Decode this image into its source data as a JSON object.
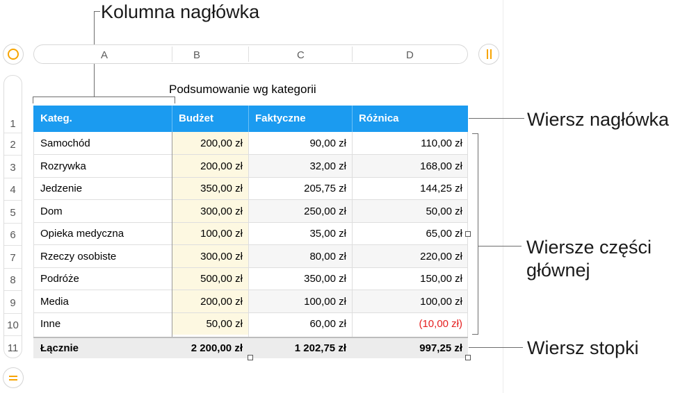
{
  "annotations": {
    "header_column": "Kolumna nagłówka",
    "header_row": "Wiersz nagłówka",
    "body_rows_line1": "Wiersze części",
    "body_rows_line2": "głównej",
    "footer_row": "Wiersz stopki"
  },
  "column_letters": [
    "A",
    "B",
    "C",
    "D"
  ],
  "row_numbers": [
    "1",
    "2",
    "3",
    "4",
    "5",
    "6",
    "7",
    "8",
    "9",
    "10",
    "11"
  ],
  "table": {
    "title": "Podsumowanie wg kategorii",
    "headers": [
      "Kateg.",
      "Budżet",
      "Faktyczne",
      "Różnica"
    ],
    "rows": [
      {
        "category": "Samochód",
        "budget": "200,00 zł",
        "actual": "90,00 zł",
        "difference": "110,00 zł"
      },
      {
        "category": "Rozrywka",
        "budget": "200,00 zł",
        "actual": "32,00 zł",
        "difference": "168,00 zł"
      },
      {
        "category": "Jedzenie",
        "budget": "350,00 zł",
        "actual": "205,75 zł",
        "difference": "144,25 zł"
      },
      {
        "category": "Dom",
        "budget": "300,00 zł",
        "actual": "250,00 zł",
        "difference": "50,00 zł"
      },
      {
        "category": "Opieka medyczna",
        "budget": "100,00 zł",
        "actual": "35,00 zł",
        "difference": "65,00 zł"
      },
      {
        "category": "Rzeczy osobiste",
        "budget": "300,00 zł",
        "actual": "80,00 zł",
        "difference": "220,00 zł"
      },
      {
        "category": "Podróże",
        "budget": "500,00 zł",
        "actual": "350,00 zł",
        "difference": "150,00 zł"
      },
      {
        "category": "Media",
        "budget": "200,00 zł",
        "actual": "100,00 zł",
        "difference": "100,00 zł"
      },
      {
        "category": "Inne",
        "budget": "50,00 zł",
        "actual": "60,00 zł",
        "difference": "(10,00 zł)"
      }
    ],
    "footer": {
      "label": "Łącznie",
      "budget": "2 200,00 zł",
      "actual": "1 202,75 zł",
      "difference": "997,25 zł"
    }
  },
  "colors": {
    "header_bg": "#1b9bf0",
    "accent": "#f7a400",
    "negative": "#e52020",
    "budget_column_bg": "#fdf8e1"
  },
  "icons": {
    "table_select": "circle-icon",
    "add_column": "pause-icon",
    "add_row": "equals-icon"
  }
}
